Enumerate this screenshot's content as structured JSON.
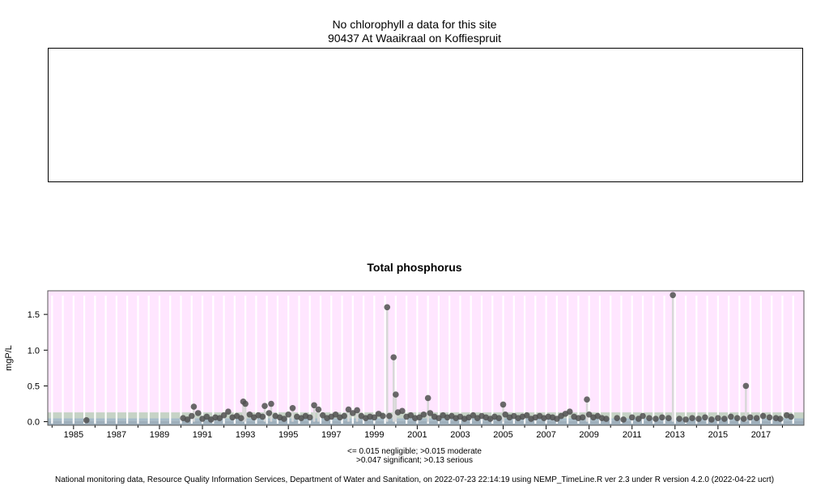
{
  "header": {
    "no_data_prefix": "No chlorophyll ",
    "no_data_italic": "a",
    "no_data_suffix": " data for this site",
    "site": "90437 At Waaikraal on Koffiespruit"
  },
  "legend": {
    "line1": "<= 0.015 negligible; >0.015 moderate",
    "line2": ">0.047 significant; >0.13 serious"
  },
  "footer": "National monitoring data, Resource Quality Information Services, Department of Water and Sanitation, on 2022-07-23 22:14:19 using NEMP_TimeLine.R ver 2.3 under R version 4.2.0 (2022-04-22 ucrt)",
  "colors": {
    "serious": "#ffe6ff",
    "significant": "#c6d3c6",
    "moderate": "#a6bcc9",
    "negligible": "#9fb0bc",
    "point": "#505050"
  },
  "chart_data": {
    "type": "scatter",
    "title": "Total phosphorus",
    "ylabel": "mgP/L",
    "xlabel": "",
    "xlim": [
      1983.8,
      2019.0
    ],
    "ylim": [
      -0.05,
      1.83
    ],
    "yticks": [
      0.0,
      0.5,
      1.0,
      1.5
    ],
    "ytick_labels": [
      "0.0",
      "0.5",
      "1.0",
      "1.5"
    ],
    "xticks": [
      1985,
      1987,
      1989,
      1991,
      1993,
      1995,
      1997,
      1999,
      2001,
      2003,
      2005,
      2007,
      2009,
      2011,
      2013,
      2015,
      2017
    ],
    "xtick_labels": [
      "1985",
      "1987",
      "1989",
      "1991",
      "1993",
      "1995",
      "1997",
      "1999",
      "2001",
      "2003",
      "2005",
      "2007",
      "2009",
      "2011",
      "2013",
      "2015",
      "2017"
    ],
    "thresholds": [
      0.015,
      0.047,
      0.13
    ],
    "x": [
      1985.6,
      1990.1,
      1990.3,
      1990.5,
      1990.6,
      1990.8,
      1991.0,
      1991.2,
      1991.4,
      1991.6,
      1991.8,
      1992.0,
      1992.2,
      1992.4,
      1992.6,
      1992.8,
      1992.9,
      1993.0,
      1993.2,
      1993.4,
      1993.6,
      1993.8,
      1993.9,
      1994.1,
      1994.2,
      1994.4,
      1994.6,
      1994.8,
      1995.0,
      1995.2,
      1995.4,
      1995.6,
      1995.8,
      1996.0,
      1996.2,
      1996.4,
      1996.6,
      1996.8,
      1997.0,
      1997.2,
      1997.4,
      1997.6,
      1997.8,
      1998.0,
      1998.2,
      1998.4,
      1998.6,
      1998.8,
      1999.0,
      1999.2,
      1999.4,
      1999.6,
      1999.7,
      1999.9,
      2000.0,
      2000.1,
      2000.3,
      2000.5,
      2000.7,
      2000.9,
      2001.1,
      2001.3,
      2001.5,
      2001.6,
      2001.8,
      2002.0,
      2002.2,
      2002.4,
      2002.6,
      2002.8,
      2003.0,
      2003.2,
      2003.4,
      2003.6,
      2003.8,
      2004.0,
      2004.2,
      2004.4,
      2004.6,
      2004.8,
      2005.0,
      2005.1,
      2005.3,
      2005.5,
      2005.7,
      2005.9,
      2006.1,
      2006.3,
      2006.5,
      2006.7,
      2006.9,
      2007.1,
      2007.3,
      2007.5,
      2007.7,
      2007.9,
      2008.1,
      2008.3,
      2008.5,
      2008.7,
      2008.9,
      2009.0,
      2009.2,
      2009.4,
      2009.6,
      2009.8,
      2010.3,
      2010.6,
      2011.0,
      2011.3,
      2011.5,
      2011.8,
      2012.1,
      2012.4,
      2012.7,
      2012.9,
      2013.2,
      2013.5,
      2013.8,
      2014.1,
      2014.4,
      2014.7,
      2015.0,
      2015.3,
      2015.6,
      2015.9,
      2016.2,
      2016.3,
      2016.5,
      2016.8,
      2017.1,
      2017.4,
      2017.7,
      2017.9,
      2018.2,
      2018.4
    ],
    "y": [
      0.02,
      0.05,
      0.03,
      0.08,
      0.21,
      0.12,
      0.04,
      0.07,
      0.03,
      0.06,
      0.05,
      0.09,
      0.14,
      0.06,
      0.08,
      0.05,
      0.28,
      0.25,
      0.1,
      0.06,
      0.09,
      0.07,
      0.22,
      0.12,
      0.25,
      0.08,
      0.06,
      0.04,
      0.1,
      0.19,
      0.07,
      0.05,
      0.08,
      0.06,
      0.23,
      0.17,
      0.09,
      0.05,
      0.07,
      0.1,
      0.06,
      0.08,
      0.17,
      0.12,
      0.16,
      0.08,
      0.05,
      0.07,
      0.06,
      0.11,
      0.08,
      1.6,
      0.08,
      0.9,
      0.38,
      0.13,
      0.15,
      0.07,
      0.09,
      0.05,
      0.06,
      0.1,
      0.33,
      0.12,
      0.07,
      0.05,
      0.09,
      0.06,
      0.08,
      0.05,
      0.07,
      0.04,
      0.06,
      0.09,
      0.05,
      0.08,
      0.06,
      0.04,
      0.07,
      0.05,
      0.24,
      0.1,
      0.06,
      0.08,
      0.05,
      0.07,
      0.09,
      0.04,
      0.06,
      0.08,
      0.05,
      0.07,
      0.06,
      0.04,
      0.08,
      0.11,
      0.14,
      0.07,
      0.05,
      0.06,
      0.31,
      0.1,
      0.06,
      0.08,
      0.05,
      0.04,
      0.05,
      0.03,
      0.06,
      0.04,
      0.08,
      0.05,
      0.04,
      0.06,
      0.05,
      1.77,
      0.04,
      0.03,
      0.05,
      0.04,
      0.06,
      0.03,
      0.05,
      0.04,
      0.07,
      0.05,
      0.04,
      0.5,
      0.06,
      0.05,
      0.08,
      0.06,
      0.05,
      0.04,
      0.09,
      0.07
    ]
  }
}
